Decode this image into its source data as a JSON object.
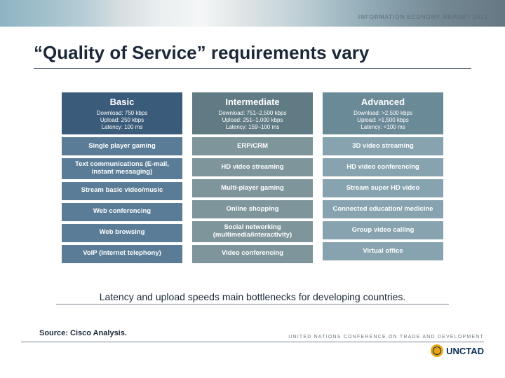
{
  "report_tag": "INFORMATION ECONOMY REPORT 2013",
  "title": "“Quality of Service” requirements vary",
  "caption": "Latency and upload speeds main bottlenecks for developing countries.",
  "source": "Source: Cisco Analysis.",
  "footer_org_text": "UNITED NATIONS CONFERENCE ON TRADE AND DEVELOPMENT",
  "footer_brand": "UNCTAD",
  "tiers": [
    {
      "name": "Basic",
      "header_bg": "#3b5b7a",
      "cell_bg": "#5a7c96",
      "download": "Download: 750 kbps",
      "upload": "Upload: 250 kbps",
      "latency": "Latency: 100 ms",
      "items": [
        "Single player gaming",
        "Text communications (E-mail, instant messaging)",
        "Stream basic video/music",
        "Web conferencing",
        "Web browsing",
        "VoIP (Internet telephony)"
      ]
    },
    {
      "name": "Intermediate",
      "header_bg": "#617b84",
      "cell_bg": "#7e959c",
      "download": "Download: 751–2,500 kbps",
      "upload": "Upload: 251–1,000 kbps",
      "latency": "Latency: 159–100 ms",
      "items": [
        "ERP/CRM",
        "HD video streaming",
        "Multi-player gaming",
        "Online shopping",
        "Social networking (multimedia/interactivity)",
        "Video conferencing"
      ]
    },
    {
      "name": "Advanced",
      "header_bg": "#6b8a98",
      "cell_bg": "#86a3af",
      "download": "Download: >2,500 kbps",
      "upload": "Upload: >1,500 kbps",
      "latency": "Latency: <100 ms",
      "items": [
        "3D video streaming",
        "HD video conferencing",
        "Stream super HD video",
        "Connected education/ medicine",
        "Group video calling",
        "Virtual office"
      ]
    }
  ]
}
